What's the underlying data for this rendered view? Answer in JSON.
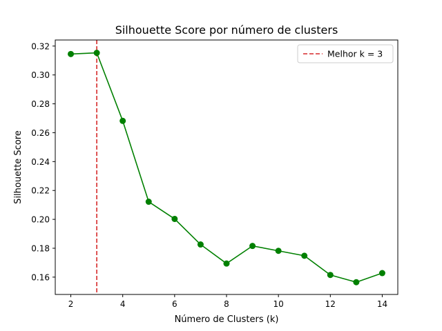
{
  "chart_data": {
    "type": "line",
    "title": "Silhouette Score por número de clusters",
    "xlabel": "Número de Clusters (k)",
    "ylabel": "Silhouette Score",
    "xlim": [
      1.4,
      14.6
    ],
    "ylim": [
      0.148,
      0.3242
    ],
    "xticks": [
      2,
      4,
      6,
      8,
      10,
      12,
      14
    ],
    "yticks": [
      0.16,
      0.18,
      0.2,
      0.22,
      0.24,
      0.26,
      0.28,
      0.3,
      0.32
    ],
    "ytick_labels": [
      "0.16",
      "0.18",
      "0.20",
      "0.22",
      "0.24",
      "0.26",
      "0.28",
      "0.30",
      "0.32"
    ],
    "grid": false,
    "legend": "top-right",
    "series": [
      {
        "x": [
          2,
          3,
          4,
          5,
          6,
          7,
          8,
          9,
          10,
          11,
          12,
          13,
          14
        ],
        "values": [
          0.3145,
          0.3153,
          0.2682,
          0.2122,
          0.2003,
          0.1826,
          0.1694,
          0.1816,
          0.1782,
          0.1748,
          0.1615,
          0.1565,
          0.1628
        ],
        "color": "#008000",
        "marker": "circle"
      }
    ],
    "reference_lines": [
      {
        "orientation": "vertical",
        "x": 3,
        "color": "#d62728",
        "style": "dashed",
        "label": "Melhor k = 3"
      }
    ]
  }
}
